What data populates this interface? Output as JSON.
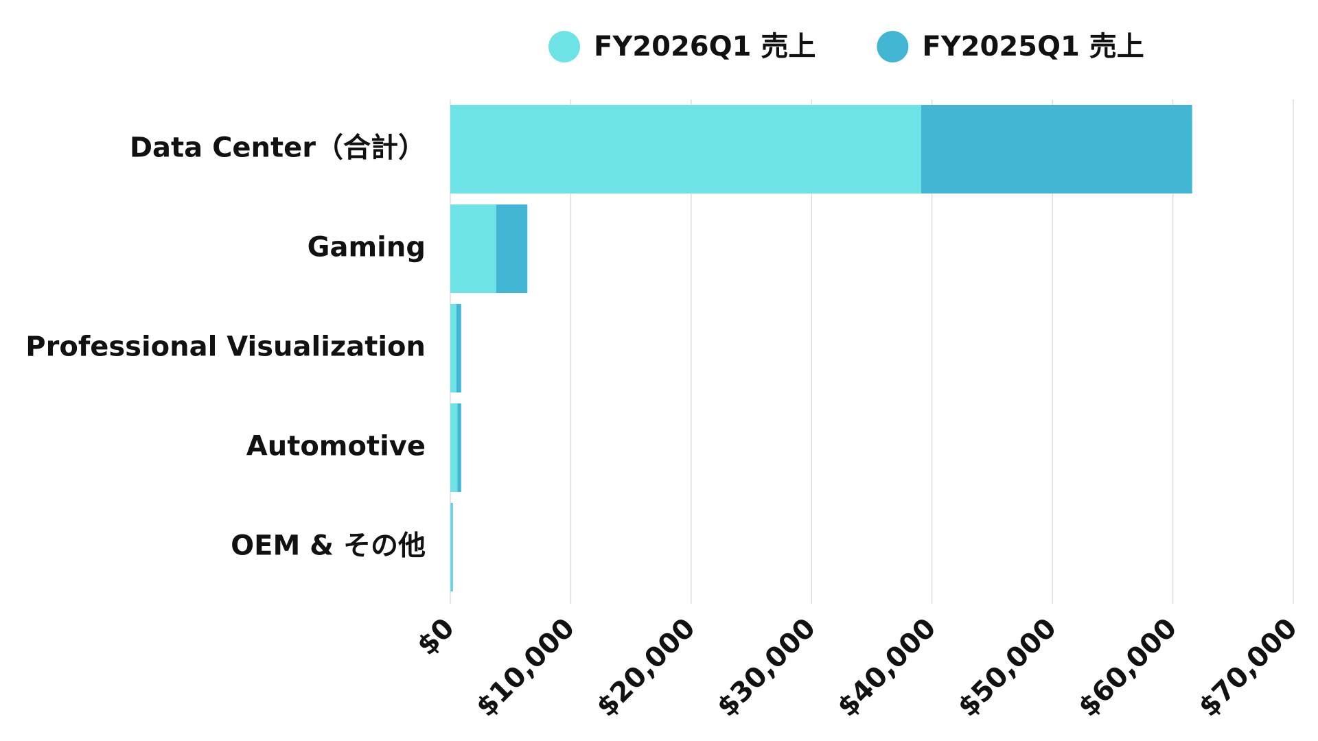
{
  "chart_data": {
    "type": "stacked-barh",
    "categories": [
      "Data Center（合計）",
      "Gaming",
      "Professional Visualization",
      "Automotive",
      "OEM & その他"
    ],
    "series": [
      {
        "name": "FY2026Q1 売上",
        "color": "#6ee3e6",
        "values": [
          39100,
          3800,
          500,
          600,
          100
        ]
      },
      {
        "name": "FY2025Q1 売上",
        "color": "#42b6d4",
        "values": [
          22500,
          2600,
          400,
          300,
          100
        ]
      }
    ],
    "xlim": [
      0,
      70000
    ],
    "xticks": [
      {
        "value": 0,
        "label": "$0"
      },
      {
        "value": 10000,
        "label": "$10,000"
      },
      {
        "value": 20000,
        "label": "$20,000"
      },
      {
        "value": 30000,
        "label": "$30,000"
      },
      {
        "value": 40000,
        "label": "$40,000"
      },
      {
        "value": 50000,
        "label": "$50,000"
      },
      {
        "value": 60000,
        "label": "$60,000"
      },
      {
        "value": 70000,
        "label": "$70,000"
      }
    ],
    "grid": true,
    "legend": "top"
  }
}
